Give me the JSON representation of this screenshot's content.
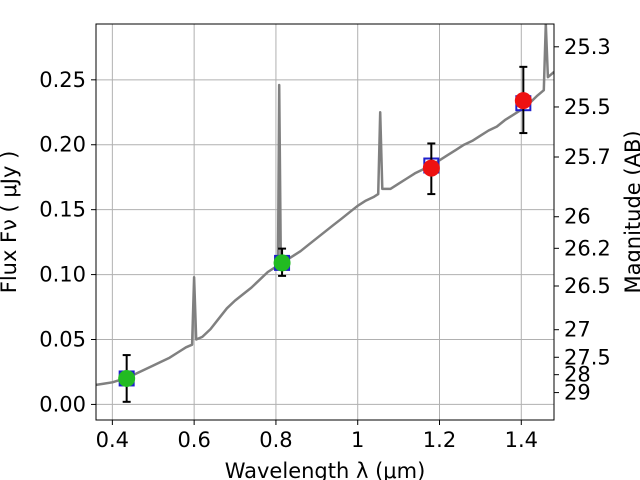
{
  "chart_data": {
    "type": "scatter",
    "xlabel": "Wavelength  λ (μm)",
    "ylabel": "Flux  Fν  ( μJy )",
    "ylabel_right": "Magnitude (AB)",
    "xlim": [
      0.36,
      1.48
    ],
    "ylim": [
      -0.012,
      0.293
    ],
    "x_ticks": [
      0.4,
      0.6,
      0.8,
      1.0,
      1.2,
      1.4
    ],
    "x_tick_labels": [
      "0.4",
      "0.6",
      "0.8",
      "1",
      "1.2",
      "1.4"
    ],
    "y_ticks": [
      0.0,
      0.05,
      0.1,
      0.15,
      0.2,
      0.25
    ],
    "y_tick_labels": [
      "0.00",
      "0.05",
      "0.10",
      "0.15",
      "0.20",
      "0.25"
    ],
    "mag_ticks": [
      25.3,
      25.5,
      25.7,
      26,
      26.2,
      26.5,
      27,
      27.5,
      28,
      29
    ],
    "mag_tick_labels": [
      "25.3",
      "25.5",
      "25.7",
      "26",
      "26.2",
      "26.5",
      "27",
      "27.5",
      "28",
      "29"
    ],
    "grid": true,
    "colors": {
      "model_spectrum": "#808080",
      "observed_points": "#1f1fcc",
      "green_points": "#22bb22",
      "red_points": "#ee1111",
      "errorbar": "#000000"
    },
    "series": [
      {
        "kind": "line",
        "points": [
          [
            0.36,
            0.015
          ],
          [
            0.38,
            0.016
          ],
          [
            0.4,
            0.017
          ],
          [
            0.42,
            0.019
          ],
          [
            0.44,
            0.021
          ],
          [
            0.46,
            0.024
          ],
          [
            0.48,
            0.027
          ],
          [
            0.5,
            0.03
          ],
          [
            0.52,
            0.033
          ],
          [
            0.54,
            0.036
          ],
          [
            0.56,
            0.04
          ],
          [
            0.58,
            0.044
          ],
          [
            0.595,
            0.046
          ],
          [
            0.6,
            0.098
          ],
          [
            0.605,
            0.05
          ],
          [
            0.62,
            0.052
          ],
          [
            0.64,
            0.058
          ],
          [
            0.66,
            0.066
          ],
          [
            0.68,
            0.074
          ],
          [
            0.7,
            0.08
          ],
          [
            0.72,
            0.085
          ],
          [
            0.74,
            0.09
          ],
          [
            0.76,
            0.096
          ],
          [
            0.78,
            0.102
          ],
          [
            0.8,
            0.106
          ],
          [
            0.805,
            0.11
          ],
          [
            0.808,
            0.246
          ],
          [
            0.812,
            0.112
          ],
          [
            0.82,
            0.11
          ],
          [
            0.84,
            0.114
          ],
          [
            0.86,
            0.118
          ],
          [
            0.88,
            0.123
          ],
          [
            0.9,
            0.128
          ],
          [
            0.92,
            0.133
          ],
          [
            0.94,
            0.138
          ],
          [
            0.96,
            0.143
          ],
          [
            0.98,
            0.148
          ],
          [
            1.0,
            0.153
          ],
          [
            1.02,
            0.157
          ],
          [
            1.04,
            0.16
          ],
          [
            1.05,
            0.162
          ],
          [
            1.055,
            0.225
          ],
          [
            1.06,
            0.166
          ],
          [
            1.08,
            0.166
          ],
          [
            1.1,
            0.17
          ],
          [
            1.12,
            0.174
          ],
          [
            1.14,
            0.178
          ],
          [
            1.16,
            0.181
          ],
          [
            1.18,
            0.184
          ],
          [
            1.2,
            0.188
          ],
          [
            1.22,
            0.192
          ],
          [
            1.24,
            0.196
          ],
          [
            1.26,
            0.2
          ],
          [
            1.28,
            0.203
          ],
          [
            1.3,
            0.207
          ],
          [
            1.32,
            0.211
          ],
          [
            1.34,
            0.214
          ],
          [
            1.36,
            0.219
          ],
          [
            1.38,
            0.223
          ],
          [
            1.4,
            0.227
          ],
          [
            1.42,
            0.232
          ],
          [
            1.44,
            0.238
          ],
          [
            1.455,
            0.242
          ],
          [
            1.46,
            0.293
          ],
          [
            1.465,
            0.252
          ],
          [
            1.48,
            0.256
          ]
        ]
      },
      {
        "kind": "squares",
        "color": "blue",
        "points": [
          [
            0.435,
            0.02
          ],
          [
            0.815,
            0.109
          ],
          [
            1.18,
            0.184
          ],
          [
            1.405,
            0.232
          ]
        ]
      },
      {
        "kind": "errorbars",
        "bars": [
          {
            "x": 0.435,
            "y": 0.02,
            "lo": 0.002,
            "hi": 0.038
          },
          {
            "x": 0.815,
            "y": 0.109,
            "lo": 0.099,
            "hi": 0.12
          },
          {
            "x": 1.18,
            "y": 0.182,
            "lo": 0.162,
            "hi": 0.201
          },
          {
            "x": 1.405,
            "y": 0.234,
            "lo": 0.209,
            "hi": 0.26
          }
        ]
      },
      {
        "kind": "circles",
        "color": "green",
        "points": [
          [
            0.435,
            0.02
          ],
          [
            0.815,
            0.109
          ]
        ]
      },
      {
        "kind": "circles",
        "color": "red",
        "points": [
          [
            1.18,
            0.182
          ],
          [
            1.405,
            0.234
          ]
        ]
      }
    ]
  }
}
